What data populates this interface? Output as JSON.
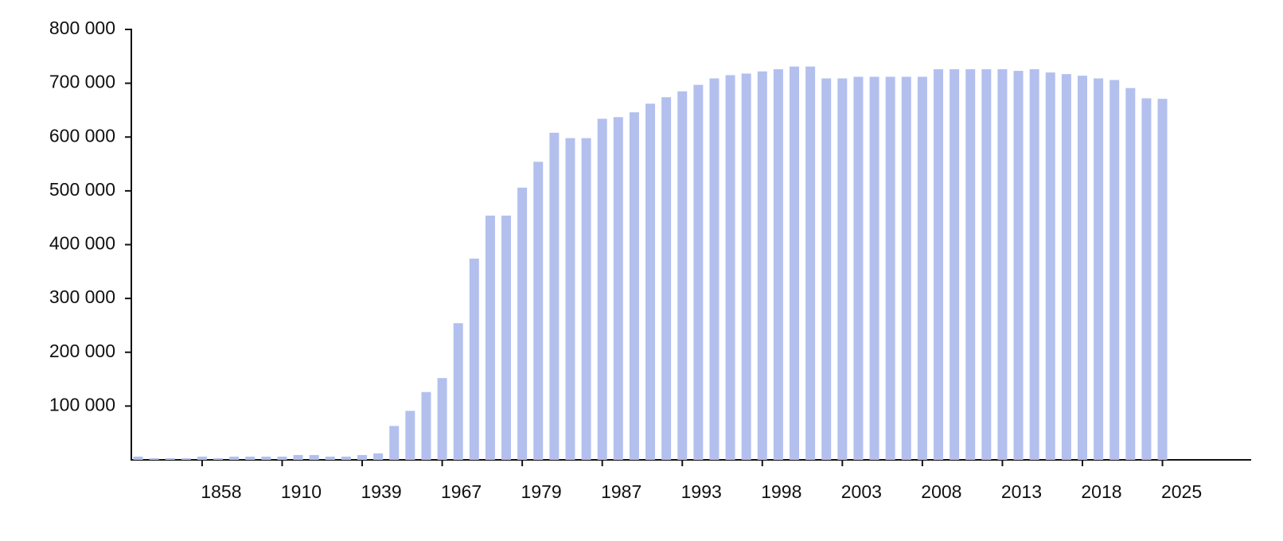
{
  "chart_data": {
    "type": "bar",
    "categories": [
      null,
      null,
      null,
      null,
      "1858",
      null,
      null,
      null,
      null,
      "1910",
      null,
      null,
      null,
      null,
      "1939",
      null,
      null,
      null,
      null,
      "1967",
      null,
      null,
      null,
      null,
      "1979",
      null,
      null,
      null,
      null,
      "1987",
      null,
      null,
      null,
      null,
      "1993",
      null,
      null,
      null,
      null,
      "1998",
      null,
      null,
      null,
      null,
      "2003",
      null,
      null,
      null,
      null,
      "2008",
      null,
      null,
      null,
      null,
      "2013",
      null,
      null,
      null,
      null,
      "2018",
      null,
      null,
      null,
      null,
      "2025"
    ],
    "values": [
      6000,
      3000,
      3000,
      3000,
      6000,
      3000,
      6000,
      6000,
      6000,
      6000,
      9000,
      9000,
      6000,
      6000,
      9000,
      12000,
      63000,
      91000,
      126000,
      152000,
      254000,
      374000,
      454000,
      454000,
      506000,
      554000,
      608000,
      598000,
      598000,
      634000,
      637000,
      646000,
      662000,
      674000,
      685000,
      697000,
      709000,
      715000,
      718000,
      722000,
      726000,
      731000,
      731000,
      709000,
      709000,
      712000,
      712000,
      712000,
      712000,
      712000,
      726000,
      726000,
      726000,
      726000,
      726000,
      723000,
      726000,
      720000,
      717000,
      714000,
      709000,
      706000,
      691000,
      672000,
      671000
    ],
    "color": "#b3c0ee",
    "ylim": [
      0,
      800000
    ],
    "yticks": [
      {
        "value": 100000,
        "label": "100 000"
      },
      {
        "value": 200000,
        "label": "200 000"
      },
      {
        "value": 300000,
        "label": "300 000"
      },
      {
        "value": 400000,
        "label": "400 000"
      },
      {
        "value": 500000,
        "label": "500 000"
      },
      {
        "value": 600000,
        "label": "600 000"
      },
      {
        "value": 700000,
        "label": "700 000"
      },
      {
        "value": 800000,
        "label": "800 000"
      }
    ]
  }
}
